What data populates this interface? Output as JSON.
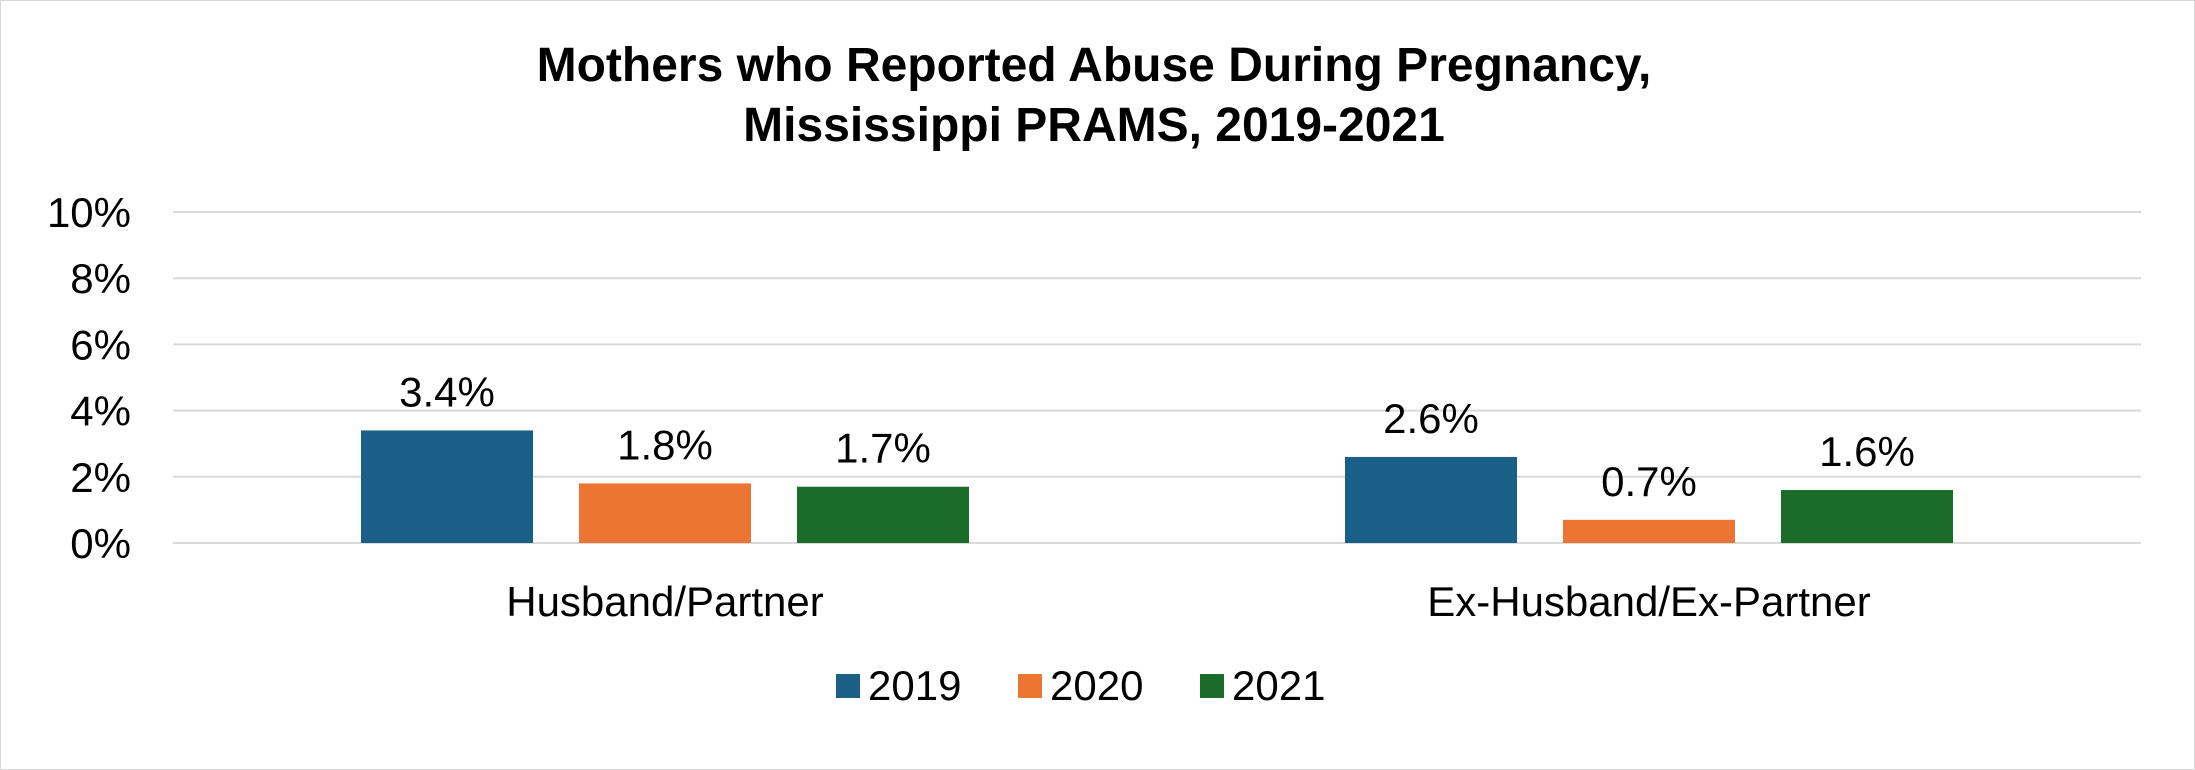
{
  "chart_data": {
    "type": "bar",
    "title": "Mothers who Reported Abuse During Pregnancy,",
    "subtitle": "Mississippi PRAMS, 2019-2021",
    "categories": [
      "Husband/Partner",
      "Ex-Husband/Ex-Partner"
    ],
    "series": [
      {
        "name": "2019",
        "values": [
          3.4,
          2.6
        ],
        "labels": [
          "3.4%",
          "2.6%"
        ],
        "color": "#1a5f85"
      },
      {
        "name": "2020",
        "values": [
          1.8,
          0.7
        ],
        "labels": [
          "1.8%",
          "0.7%"
        ],
        "color": "#ed7534"
      },
      {
        "name": "2021",
        "values": [
          1.7,
          1.6
        ],
        "labels": [
          "1.7%",
          "1.6%"
        ],
        "color": "#1b6b29"
      }
    ],
    "ylim": [
      0,
      10
    ],
    "yticks": [
      0,
      2,
      4,
      6,
      8,
      10
    ],
    "ytick_labels": [
      "0%",
      "2%",
      "4%",
      "6%",
      "8%",
      "10%"
    ],
    "xlabel": "",
    "ylabel": "",
    "grid": true,
    "legend_position": "bottom"
  }
}
